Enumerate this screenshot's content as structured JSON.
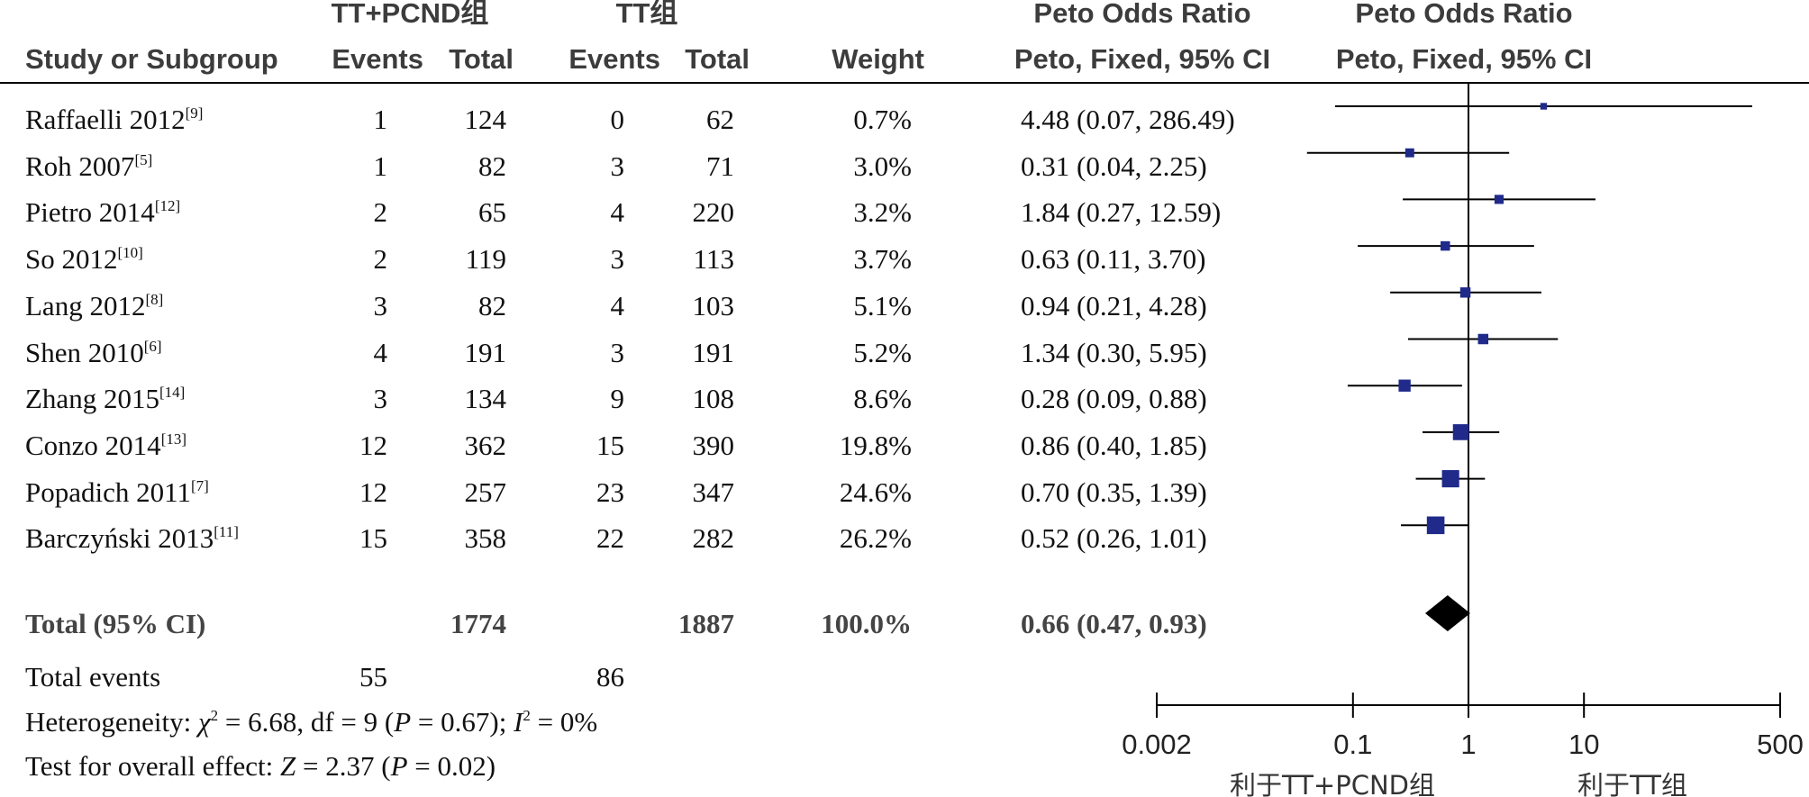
{
  "header": {
    "group1": "TT+PCND组",
    "group2": "TT组",
    "or_col1": "Peto Odds Ratio",
    "or_col2": "Peto Odds Ratio",
    "study": "Study or Subgroup",
    "events1": "Events",
    "total1": "Total",
    "events2": "Events",
    "total2": "Total",
    "weight": "Weight",
    "ci_col1": "Peto, Fixed, 95% CI",
    "ci_col2": "Peto, Fixed, 95% CI"
  },
  "rows": [
    {
      "study": "Raffaelli 2012",
      "ref": "[9]",
      "e1": "1",
      "t1": "124",
      "e2": "0",
      "t2": "62",
      "weight": "0.7%",
      "ci": "4.48 (0.07, 286.49)"
    },
    {
      "study": "Roh 2007",
      "ref": "[5]",
      "e1": "1",
      "t1": "82",
      "e2": "3",
      "t2": "71",
      "weight": "3.0%",
      "ci": "0.31 (0.04, 2.25)"
    },
    {
      "study": "Pietro 2014",
      "ref": "[12]",
      "e1": "2",
      "t1": "65",
      "e2": "4",
      "t2": "220",
      "weight": "3.2%",
      "ci": "1.84 (0.27, 12.59)"
    },
    {
      "study": "So 2012",
      "ref": "[10]",
      "e1": "2",
      "t1": "119",
      "e2": "3",
      "t2": "113",
      "weight": "3.7%",
      "ci": "0.63 (0.11, 3.70)"
    },
    {
      "study": "Lang 2012",
      "ref": "[8]",
      "e1": "3",
      "t1": "82",
      "e2": "4",
      "t2": "103",
      "weight": "5.1%",
      "ci": "0.94 (0.21, 4.28)"
    },
    {
      "study": "Shen 2010",
      "ref": "[6]",
      "e1": "4",
      "t1": "191",
      "e2": "3",
      "t2": "191",
      "weight": "5.2%",
      "ci": "1.34 (0.30, 5.95)"
    },
    {
      "study": "Zhang 2015",
      "ref": "[14]",
      "e1": "3",
      "t1": "134",
      "e2": "9",
      "t2": "108",
      "weight": "8.6%",
      "ci": "0.28 (0.09, 0.88)"
    },
    {
      "study": "Conzo 2014",
      "ref": "[13]",
      "e1": "12",
      "t1": "362",
      "e2": "15",
      "t2": "390",
      "weight": "19.8%",
      "ci": "0.86 (0.40, 1.85)"
    },
    {
      "study": "Popadich 2011",
      "ref": "[7]",
      "e1": "12",
      "t1": "257",
      "e2": "23",
      "t2": "347",
      "weight": "24.6%",
      "ci": "0.70 (0.35, 1.39)"
    },
    {
      "study": "Barczyński 2013",
      "ref": "[11]",
      "e1": "15",
      "t1": "358",
      "e2": "22",
      "t2": "282",
      "weight": "26.2%",
      "ci": "0.52 (0.26, 1.01)"
    }
  ],
  "total": {
    "label": "Total (95% CI)",
    "t1": "1774",
    "t2": "1887",
    "weight": "100.0%",
    "ci": "0.66 (0.47, 0.93)"
  },
  "total_events": {
    "label": "Total events",
    "e1": "55",
    "e2": "86"
  },
  "heterogeneity": {
    "prefix": "Heterogeneity: ",
    "chi": "χ",
    "chi_sup": "2",
    "chi_rest": " = 6.68, df = 9 (",
    "p1": "P",
    "p1_rest": " = 0.67); ",
    "i": "I",
    "i_sup": "2",
    "i_rest": " = 0%"
  },
  "overall": {
    "prefix": "Test for overall effect: ",
    "z": "Z",
    "z_rest": " = 2.37 (",
    "p": "P",
    "p_rest": " = 0.02)"
  },
  "axis": {
    "ticks": [
      "0.002",
      "0.1",
      "1",
      "10",
      "500"
    ],
    "favours_left": "利于TT+PCND组",
    "favours_right": "利于TT组"
  },
  "colors": {
    "marker": "#1f2a8a",
    "diamond": "#000000",
    "line": "#000000"
  },
  "chart_data": {
    "type": "forest",
    "scale": "log",
    "xlim": [
      0.002,
      500
    ],
    "x_ticks": [
      0.002,
      0.1,
      1,
      10,
      500
    ],
    "reference_line": 1,
    "studies": [
      {
        "name": "Raffaelli 2012",
        "or": 4.48,
        "lower": 0.07,
        "upper": 286.49,
        "weight": 0.7
      },
      {
        "name": "Roh 2007",
        "or": 0.31,
        "lower": 0.04,
        "upper": 2.25,
        "weight": 3.0
      },
      {
        "name": "Pietro 2014",
        "or": 1.84,
        "lower": 0.27,
        "upper": 12.59,
        "weight": 3.2
      },
      {
        "name": "So 2012",
        "or": 0.63,
        "lower": 0.11,
        "upper": 3.7,
        "weight": 3.7
      },
      {
        "name": "Lang 2012",
        "or": 0.94,
        "lower": 0.21,
        "upper": 4.28,
        "weight": 5.1
      },
      {
        "name": "Shen 2010",
        "or": 1.34,
        "lower": 0.3,
        "upper": 5.95,
        "weight": 5.2
      },
      {
        "name": "Zhang 2015",
        "or": 0.28,
        "lower": 0.09,
        "upper": 0.88,
        "weight": 8.6
      },
      {
        "name": "Conzo 2014",
        "or": 0.86,
        "lower": 0.4,
        "upper": 1.85,
        "weight": 19.8
      },
      {
        "name": "Popadich 2011",
        "or": 0.7,
        "lower": 0.35,
        "upper": 1.39,
        "weight": 24.6
      },
      {
        "name": "Barczyński 2013",
        "or": 0.52,
        "lower": 0.26,
        "upper": 1.01,
        "weight": 26.2
      }
    ],
    "pooled": {
      "or": 0.66,
      "lower": 0.47,
      "upper": 0.93
    }
  }
}
